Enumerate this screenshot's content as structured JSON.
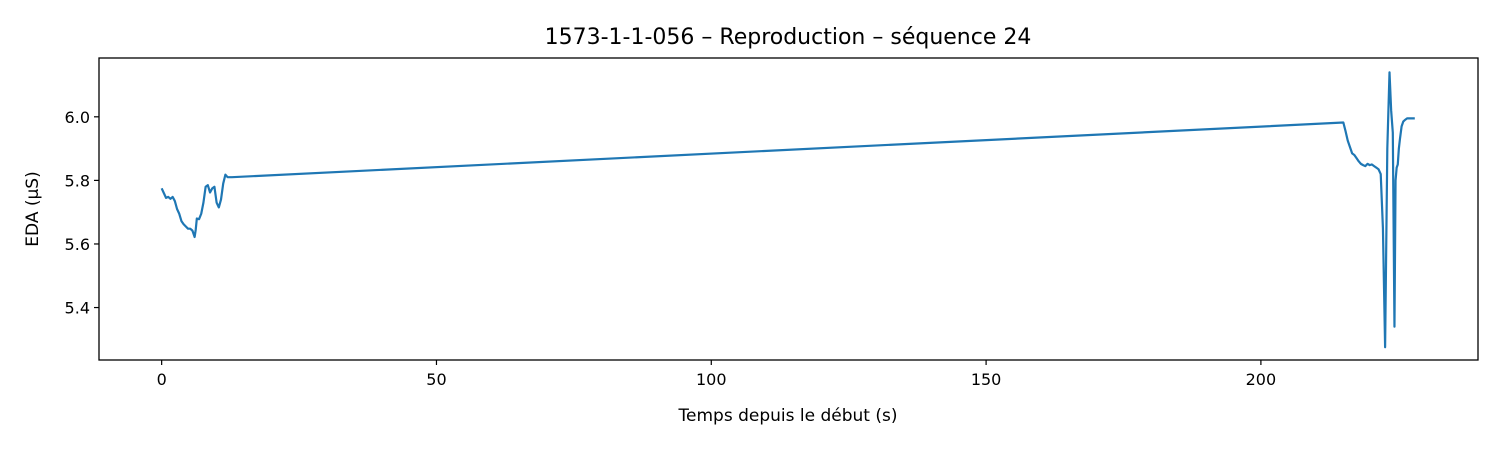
{
  "chart_data": {
    "type": "line",
    "title": "1573-1-1-056 – Reproduction – séquence 24",
    "xlabel": "Temps depuis le début (s)",
    "ylabel": "EDA (µS)",
    "xlim": [
      -11.4,
      239.5
    ],
    "ylim": [
      5.235,
      6.185
    ],
    "xticks": [
      0,
      50,
      100,
      150,
      200
    ],
    "yticks": [
      5.4,
      5.6,
      5.8,
      6.0
    ],
    "xtick_labels": [
      "0",
      "50",
      "100",
      "150",
      "200"
    ],
    "ytick_labels": [
      "5.4",
      "5.6",
      "5.8",
      "6.0"
    ],
    "grid": false,
    "legend": "none",
    "color": "#1f77b4",
    "series": [
      {
        "x": [
          0,
          0.4,
          0.8,
          1.2,
          1.6,
          2.0,
          2.4,
          2.8,
          3.2,
          3.6,
          4.0,
          4.4,
          4.8,
          5.2,
          5.6,
          6.0,
          6.2,
          6.4,
          6.8,
          7.2,
          7.6,
          8.0,
          8.4,
          8.8,
          9.2,
          9.6,
          10.0,
          10.4,
          10.8,
          11.2,
          11.6,
          12.0,
          12.4,
          12.8,
          215.0,
          215.4,
          215.8,
          216.2,
          216.6,
          217.0,
          217.4,
          217.8,
          218.2,
          218.6,
          219.0,
          219.4,
          219.8,
          220.2,
          220.6,
          221.0,
          221.4,
          221.8,
          222.2,
          222.6,
          223.0,
          223.4,
          223.7,
          224.0,
          224.3,
          224.5,
          224.7,
          224.9,
          225.1,
          225.3,
          225.6,
          225.9,
          226.2,
          226.6,
          227.0,
          227.5,
          228.0
        ],
        "y": [
          5.775,
          5.76,
          5.745,
          5.748,
          5.742,
          5.748,
          5.735,
          5.71,
          5.695,
          5.672,
          5.662,
          5.655,
          5.648,
          5.648,
          5.642,
          5.622,
          5.645,
          5.68,
          5.678,
          5.695,
          5.73,
          5.78,
          5.785,
          5.762,
          5.775,
          5.78,
          5.73,
          5.715,
          5.74,
          5.79,
          5.818,
          5.81,
          5.81,
          5.81,
          5.982,
          5.955,
          5.925,
          5.905,
          5.885,
          5.88,
          5.87,
          5.86,
          5.852,
          5.848,
          5.845,
          5.852,
          5.848,
          5.85,
          5.845,
          5.84,
          5.835,
          5.82,
          5.65,
          5.275,
          5.9,
          6.14,
          6.02,
          5.95,
          5.34,
          5.8,
          5.84,
          5.85,
          5.9,
          5.93,
          5.97,
          5.985,
          5.99,
          5.995,
          5.995,
          5.995,
          5.995
        ]
      }
    ]
  }
}
